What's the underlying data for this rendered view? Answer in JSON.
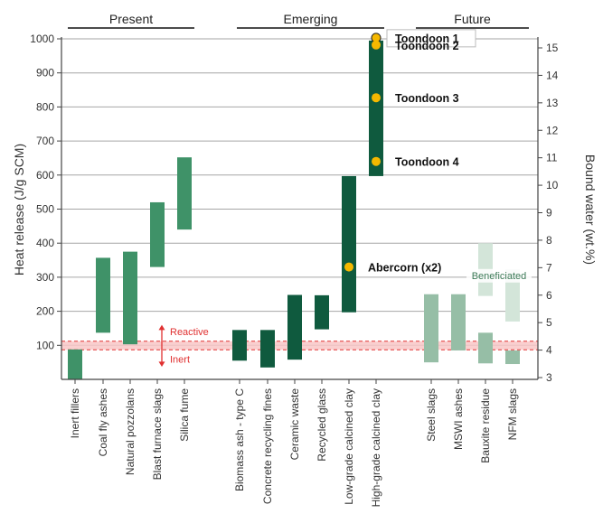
{
  "chart_data": {
    "type": "bar",
    "groups": [
      {
        "label": "Present",
        "categories": [
          "Inert fillers",
          "Coal fly ashes",
          "Natural pozzolans",
          "Blast furnace slags",
          "Silica fume"
        ]
      },
      {
        "label": "Emerging",
        "categories": [
          "Biomass ash - type C",
          "Concrete recycling fines",
          "Ceramic waste",
          "Recycled glass",
          "Low-grade calcined clay",
          "High-grade calcined clay"
        ]
      },
      {
        "label": "Future",
        "categories": [
          "Steel slags",
          "MSWI ashes",
          "Bauxite residue",
          "NFM slags"
        ]
      }
    ],
    "categories": [
      "Inert fillers",
      "Coal fly ashes",
      "Natural pozzolans",
      "Blast furnace slags",
      "Silica fume",
      "Biomass ash - type C",
      "Concrete recycling fines",
      "Ceramic waste",
      "Recycled glass",
      "Low-grade calcined clay",
      "High-grade calcined clay",
      "Steel slags",
      "MSWI ashes",
      "Bauxite residue",
      "NFM slags"
    ],
    "ranges": [
      {
        "category": "Inert fillers",
        "min": 0,
        "max": 88,
        "color": "#3f9268"
      },
      {
        "category": "Coal fly ashes",
        "min": 137,
        "max": 357,
        "color": "#3f9268"
      },
      {
        "category": "Natural pozzolans",
        "min": 103,
        "max": 375,
        "color": "#3f9268"
      },
      {
        "category": "Blast furnace slags",
        "min": 330,
        "max": 520,
        "color": "#3f9268"
      },
      {
        "category": "Silica fume",
        "min": 440,
        "max": 652,
        "color": "#3f9268"
      },
      {
        "category": "Biomass ash - type C",
        "min": 55,
        "max": 145,
        "color": "#0f5a3e"
      },
      {
        "category": "Concrete recycling fines",
        "min": 35,
        "max": 145,
        "color": "#0f5a3e"
      },
      {
        "category": "Ceramic waste",
        "min": 58,
        "max": 248,
        "color": "#0f5a3e"
      },
      {
        "category": "Recycled glass",
        "min": 147,
        "max": 247,
        "color": "#0f5a3e"
      },
      {
        "category": "Low-grade calcined clay",
        "min": 197,
        "max": 597,
        "color": "#0f5a3e"
      },
      {
        "category": "High-grade calcined clay",
        "min": 597,
        "max": 995,
        "color": "#0f5a3e"
      },
      {
        "category": "Steel slags",
        "min": 50,
        "max": 250,
        "color": "#96bea6"
      },
      {
        "category": "MSWI ashes",
        "min": 85,
        "max": 250,
        "color": "#96bea6"
      },
      {
        "category": "Bauxite residue",
        "min": 47,
        "max": 137,
        "color": "#96bea6"
      },
      {
        "category": "NFM slags",
        "min": 45,
        "max": 85,
        "color": "#96bea6"
      }
    ],
    "beneficiated": [
      {
        "category": "Bauxite residue",
        "min": 245,
        "max": 400,
        "color": "#d3e5d9"
      },
      {
        "category": "NFM slags",
        "min": 170,
        "max": 323,
        "color": "#d3e5d9"
      }
    ],
    "beneficiated_label": "Beneficiated",
    "points": [
      {
        "label": "Toondoon 1",
        "category": "High-grade calcined clay",
        "y": 1003,
        "boxed": true
      },
      {
        "label": "Toondoon 2",
        "category": "High-grade calcined clay",
        "y": 982,
        "boxed": false
      },
      {
        "label": "Toondoon 3",
        "category": "High-grade calcined clay",
        "y": 827,
        "boxed": false
      },
      {
        "label": "Toondoon 4",
        "category": "High-grade calcined clay",
        "y": 640,
        "boxed": false
      },
      {
        "label": "Abercorn (x2)",
        "category": "Low-grade calcined clay",
        "y": 330,
        "boxed": false
      }
    ],
    "threshold": {
      "y": 100,
      "band": [
        87,
        112
      ],
      "label_above": "Reactive",
      "label_below": "Inert",
      "color": "#e03030"
    },
    "ylabel": "Heat release (J/g SCM)",
    "ylim": [
      0,
      1000
    ],
    "yticks": [
      100,
      200,
      300,
      400,
      500,
      600,
      700,
      800,
      900,
      1000
    ],
    "y2label": "Bound water (wt.%)",
    "y2lim": [
      3,
      15.3
    ],
    "y2ticks": [
      3,
      4,
      5,
      6,
      7,
      8,
      9,
      10,
      11,
      12,
      13,
      14,
      15
    ],
    "grid": true
  },
  "colors": {
    "present": "#3f9268",
    "emerging": "#0f5a3e",
    "future": "#96bea6",
    "beneficiated": "#d3e5d9",
    "marker": "#f5b800",
    "threshold": "#e03030",
    "axis": "#444444",
    "grid": "#a6a6a6"
  }
}
